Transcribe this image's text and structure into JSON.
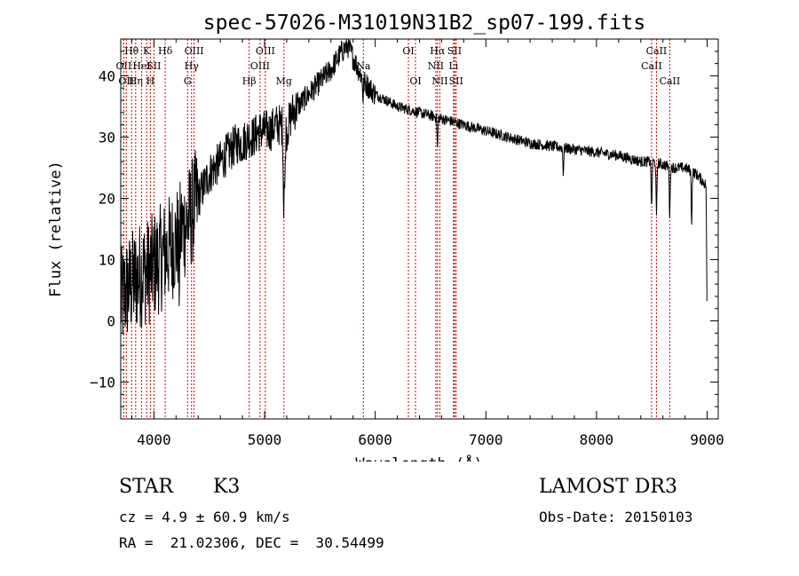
{
  "chart_data": {
    "type": "line",
    "title": "spec-57026-M31019N31B2_sp07-199.fits",
    "xlabel": "Wavelength (Å)",
    "ylabel": "Flux (relative)",
    "xlim": [
      3700,
      9100
    ],
    "ylim": [
      -16,
      46
    ],
    "xticks": [
      4000,
      5000,
      6000,
      7000,
      8000,
      9000
    ],
    "yticks": [
      -10,
      0,
      10,
      20,
      30,
      40
    ],
    "line_color": "#000000",
    "marker_color": "#cc0000",
    "continuum": {
      "x": [
        3700,
        3750,
        3800,
        3850,
        3900,
        3950,
        4000,
        4050,
        4100,
        4150,
        4200,
        4250,
        4300,
        4350,
        4400,
        4450,
        4500,
        4550,
        4600,
        4650,
        4700,
        4750,
        4800,
        4850,
        4900,
        4950,
        5000,
        5050,
        5100,
        5150,
        5200,
        5250,
        5300,
        5400,
        5500,
        5600,
        5700,
        5750,
        5800,
        5850,
        5900,
        5950,
        6000,
        6100,
        6200,
        6300,
        6400,
        6500,
        6600,
        6700,
        6800,
        6900,
        7000,
        7200,
        7400,
        7600,
        7800,
        8000,
        8200,
        8400,
        8500,
        8600,
        8700,
        8800,
        8900,
        8950,
        9000
      ],
      "y": [
        3,
        5,
        6,
        7,
        8,
        8,
        9,
        10,
        11,
        12,
        13,
        15,
        16,
        18,
        20,
        22,
        24,
        25,
        26,
        27,
        28,
        29,
        29,
        30,
        30,
        31,
        31,
        31,
        32,
        32,
        31,
        34,
        35,
        37,
        39,
        41,
        44,
        45,
        43,
        41,
        39,
        38,
        37,
        36,
        35,
        34.5,
        34,
        33.5,
        33,
        32.5,
        32,
        31.5,
        31,
        30,
        29,
        28.5,
        28,
        27.5,
        27,
        26,
        26,
        25.5,
        25,
        25,
        24,
        23,
        22
      ]
    },
    "absorption_features": [
      {
        "x": 4227,
        "depth": 7
      },
      {
        "x": 5172,
        "depth": 12
      },
      {
        "x": 5183,
        "depth": 10
      },
      {
        "x": 5890,
        "depth": 3
      },
      {
        "x": 6563,
        "depth": 5
      },
      {
        "x": 7700,
        "depth": 4
      },
      {
        "x": 8498,
        "depth": 8
      },
      {
        "x": 8542,
        "depth": 9
      },
      {
        "x": 8662,
        "depth": 8
      },
      {
        "x": 8860,
        "depth": 8
      },
      {
        "x": 9000,
        "depth": 22
      }
    ],
    "line_markers": [
      {
        "x": 3727,
        "label": "OII",
        "row": 2
      },
      {
        "x": 3750,
        "label": "OII",
        "row": 3
      },
      {
        "x": 3798,
        "label": "Hθ",
        "row": 1
      },
      {
        "x": 3835,
        "label": "Hη",
        "row": 3
      },
      {
        "x": 3889,
        "label": "HeI",
        "row": 2
      },
      {
        "x": 3934,
        "label": "K",
        "row": 1
      },
      {
        "x": 3968,
        "label": "H",
        "row": 3
      },
      {
        "x": 4000,
        "label": "SII",
        "row": 2
      },
      {
        "x": 4102,
        "label": "Hδ",
        "row": 1
      },
      {
        "x": 4304,
        "label": "G",
        "row": 3
      },
      {
        "x": 4340,
        "label": "Hγ",
        "row": 2
      },
      {
        "x": 4363,
        "label": "OIII",
        "row": 1
      },
      {
        "x": 4861,
        "label": "Hβ",
        "row": 3
      },
      {
        "x": 4959,
        "label": "OIII",
        "row": 2
      },
      {
        "x": 5007,
        "label": "OIII",
        "row": 1
      },
      {
        "x": 5175,
        "label": "Mg",
        "row": 3
      },
      {
        "x": 5893,
        "label": "Na",
        "row": 2
      },
      {
        "x": 6300,
        "label": "OI",
        "row": 1
      },
      {
        "x": 6364,
        "label": "OI",
        "row": 3
      },
      {
        "x": 6548,
        "label": "NII",
        "row": 2
      },
      {
        "x": 6563,
        "label": "Hα",
        "row": 1
      },
      {
        "x": 6584,
        "label": "NII",
        "row": 3
      },
      {
        "x": 6708,
        "label": "Li",
        "row": 2
      },
      {
        "x": 6717,
        "label": "SII",
        "row": 1
      },
      {
        "x": 6731,
        "label": "SII",
        "row": 3
      },
      {
        "x": 8498,
        "label": "CaII",
        "row": 2
      },
      {
        "x": 8542,
        "label": "CaII",
        "row": 1
      },
      {
        "x": 8662,
        "label": "CaII",
        "row": 3
      }
    ]
  },
  "info": {
    "object_type": "STAR",
    "subclass": "K3",
    "survey": "LAMOST DR3",
    "cz": "cz = 4.9 ± 60.9 km/s",
    "obs_date": "Obs-Date: 20150103",
    "coords": "RA =  21.02306, DEC =  30.54499"
  }
}
